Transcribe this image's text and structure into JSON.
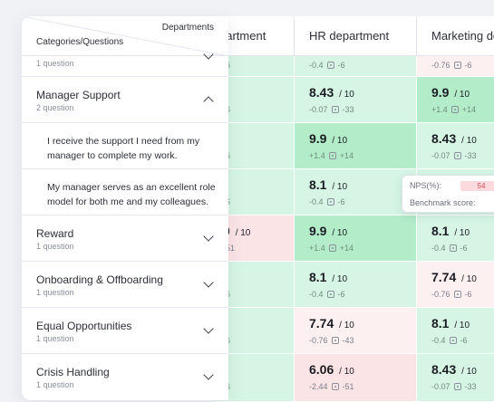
{
  "header": {
    "departments_label": "Departments",
    "categories_label": "Categories/Questions"
  },
  "columns": [
    {
      "label": "partment"
    },
    {
      "label": "HR department"
    },
    {
      "label": "Marketing de"
    }
  ],
  "rows": [
    {
      "kind": "category",
      "title": "",
      "questions": "1 question",
      "expanded": false
    },
    {
      "kind": "category",
      "title": "Manager Support",
      "questions": "2 question",
      "expanded": true
    },
    {
      "kind": "question",
      "text": "I receive the support I need from my manager to complete my work."
    },
    {
      "kind": "question",
      "text": "My manager serves as an excellent role model for both me and my colleagues."
    },
    {
      "kind": "category",
      "title": "Reward",
      "questions": "1 question",
      "expanded": false
    },
    {
      "kind": "category",
      "title": "Onboarding & Offboarding",
      "questions": "1 question",
      "expanded": false
    },
    {
      "kind": "category",
      "title": "Equal Opportunities",
      "questions": "1 question",
      "expanded": false
    },
    {
      "kind": "category",
      "title": "Crisis Handling",
      "questions": "1 question",
      "expanded": false
    }
  ],
  "cells": [
    [
      {
        "score": "",
        "diff": "",
        "bench": "-6",
        "tone": "green"
      },
      {
        "score": "",
        "diff": "-0.4",
        "bench": "-6",
        "tone": "green"
      },
      {
        "score": "",
        "diff": "-0.76",
        "bench": "-6",
        "tone": "lpink"
      }
    ],
    [
      {
        "score": "",
        "diff": "",
        "bench": "-6",
        "tone": "green"
      },
      {
        "score": "8.43",
        "diff": "-0.07",
        "bench": "-33",
        "tone": "green"
      },
      {
        "score": "9.9",
        "diff": "+1.4",
        "bench": "+14",
        "tone": "dgreen"
      }
    ],
    [
      {
        "score": "",
        "diff": "",
        "bench": "-6",
        "tone": "green"
      },
      {
        "score": "9.9",
        "diff": "+1.4",
        "bench": "+14",
        "tone": "dgreen"
      },
      {
        "score": "8.43",
        "diff": "-0.07",
        "bench": "-33",
        "tone": "green"
      }
    ],
    [
      {
        "score": "",
        "diff": "",
        "bench": "-6",
        "tone": "green"
      },
      {
        "score": "8.1",
        "diff": "-0.4",
        "bench": "-6",
        "tone": "green"
      },
      {
        "score": "",
        "diff": "",
        "bench": "",
        "tone": "green"
      }
    ],
    [
      {
        "score": "0",
        "diff": "",
        "bench": "-51",
        "tone": "pink"
      },
      {
        "score": "9.9",
        "diff": "+1.4",
        "bench": "+14",
        "tone": "dgreen"
      },
      {
        "score": "8.1",
        "diff": "-0.4",
        "bench": "-6",
        "tone": "green"
      }
    ],
    [
      {
        "score": "",
        "diff": "",
        "bench": "-6",
        "tone": "green"
      },
      {
        "score": "8.1",
        "diff": "-0.4",
        "bench": "-6",
        "tone": "green"
      },
      {
        "score": "7.74",
        "diff": "-0.76",
        "bench": "-6",
        "tone": "lpink"
      }
    ],
    [
      {
        "score": "",
        "diff": "",
        "bench": "-6",
        "tone": "green"
      },
      {
        "score": "7.74",
        "diff": "-0.76",
        "bench": "-43",
        "tone": "lpink"
      },
      {
        "score": "8.1",
        "diff": "-0.4",
        "bench": "-6",
        "tone": "green"
      }
    ],
    [
      {
        "score": "",
        "diff": "",
        "bench": "-6",
        "tone": "green"
      },
      {
        "score": "6.06",
        "diff": "-2.44",
        "bench": "-51",
        "tone": "pink"
      },
      {
        "score": "8.43",
        "diff": "-0.07",
        "bench": "-33",
        "tone": "green"
      }
    ]
  ],
  "score_suffix": "/ 10",
  "tooltip": {
    "nps_label": "NPS(%):",
    "nps_value": "54",
    "benchmark_label": "Benchmark score:"
  },
  "icons": {
    "benchmark": "benchmark-icon",
    "expand": "chevron-down-icon",
    "collapse": "chevron-up-icon"
  },
  "colors": {
    "green": "#d6f5e4",
    "dark_green": "#b2ecc9",
    "pink": "#fbe4e6",
    "light_pink": "#fdf0f1"
  }
}
